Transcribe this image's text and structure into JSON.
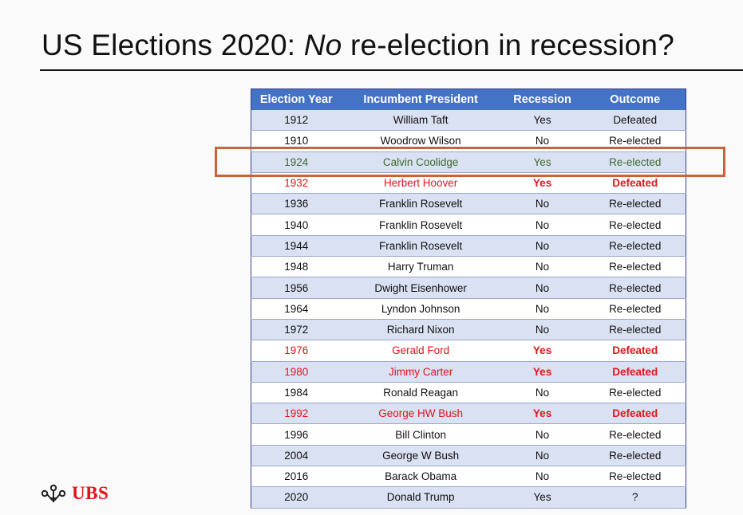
{
  "slide": {
    "title_part1": "US Elections 2020: ",
    "title_italic": "No",
    "title_part2": " re-election in recession?"
  },
  "table": {
    "headers": [
      "Election Year",
      "Incumbent President",
      "Recession",
      "Outcome"
    ],
    "rows": [
      {
        "year": "1912",
        "president": "William Taft",
        "recession": "Yes",
        "outcome": "Defeated",
        "color": "default"
      },
      {
        "year": "1910",
        "president": "Woodrow Wilson",
        "recession": "No",
        "outcome": "Re-elected",
        "color": "default"
      },
      {
        "year": "1924",
        "president": "Calvin Coolidge",
        "recession": "Yes",
        "outcome": "Re-elected",
        "color": "green"
      },
      {
        "year": "1932",
        "president": "Herbert Hoover",
        "recession": "Yes",
        "outcome": "Defeated",
        "color": "red"
      },
      {
        "year": "1936",
        "president": "Franklin Rosevelt",
        "recession": "No",
        "outcome": "Re-elected",
        "color": "default"
      },
      {
        "year": "1940",
        "president": "Franklin Rosevelt",
        "recession": "No",
        "outcome": "Re-elected",
        "color": "default"
      },
      {
        "year": "1944",
        "president": "Franklin Rosevelt",
        "recession": "No",
        "outcome": "Re-elected",
        "color": "default"
      },
      {
        "year": "1948",
        "president": "Harry Truman",
        "recession": "No",
        "outcome": "Re-elected",
        "color": "default"
      },
      {
        "year": "1956",
        "president": "Dwight Eisenhower",
        "recession": "No",
        "outcome": "Re-elected",
        "color": "default"
      },
      {
        "year": "1964",
        "president": "Lyndon Johnson",
        "recession": "No",
        "outcome": "Re-elected",
        "color": "default"
      },
      {
        "year": "1972",
        "president": "Richard Nixon",
        "recession": "No",
        "outcome": "Re-elected",
        "color": "default"
      },
      {
        "year": "1976",
        "president": "Gerald Ford",
        "recession": "Yes",
        "outcome": "Defeated",
        "color": "red"
      },
      {
        "year": "1980",
        "president": "Jimmy Carter",
        "recession": "Yes",
        "outcome": "Defeated",
        "color": "red"
      },
      {
        "year": "1984",
        "president": "Ronald Reagan",
        "recession": "No",
        "outcome": "Re-elected",
        "color": "default"
      },
      {
        "year": "1992",
        "president": "George HW Bush",
        "recession": "Yes",
        "outcome": "Defeated",
        "color": "red"
      },
      {
        "year": "1996",
        "president": "Bill Clinton",
        "recession": "No",
        "outcome": "Re-elected",
        "color": "default"
      },
      {
        "year": "2004",
        "president": "George W Bush",
        "recession": "No",
        "outcome": "Re-elected",
        "color": "default"
      },
      {
        "year": "2016",
        "president": "Barack Obama",
        "recession": "No",
        "outcome": "Re-elected",
        "color": "default"
      },
      {
        "year": "2020",
        "president": "Donald Trump",
        "recession": "Yes",
        "outcome": "?",
        "color": "default"
      }
    ]
  },
  "highlight": {
    "row_year": "1924",
    "border_color": "#c8633b"
  },
  "colors": {
    "header_bg": "#4472c4",
    "band": "#d9e1f2",
    "red_text": "#e0151b",
    "green_text": "#3d6b2e"
  },
  "logo": {
    "icon": "ubs-keys-icon",
    "wordmark": "UBS"
  }
}
